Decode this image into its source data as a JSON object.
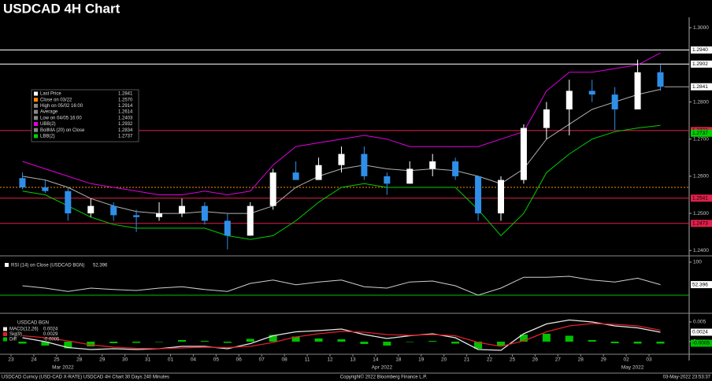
{
  "title": "USDCAD 4H Chart",
  "chart_data": [
    {
      "type": "candlestick",
      "categories": [
        "23",
        "24",
        "25",
        "28",
        "29",
        "30",
        "31",
        "01",
        "04",
        "05",
        "06",
        "07",
        "08",
        "11",
        "12",
        "13",
        "14",
        "18",
        "19",
        "20",
        "21",
        "22",
        "25",
        "26",
        "27",
        "28",
        "29",
        "02",
        "03"
      ],
      "month_labels": [
        "Mar 2022",
        "Apr 2022",
        "May 2022"
      ],
      "open": [
        1.2595,
        1.257,
        1.256,
        1.25,
        1.252,
        1.2495,
        1.249,
        1.25,
        1.252,
        1.248,
        1.244,
        1.252,
        1.261,
        1.259,
        1.263,
        1.266,
        1.26,
        1.258,
        1.262,
        1.264,
        1.26,
        1.25,
        1.259,
        1.273,
        1.278,
        1.283,
        1.282,
        1.278,
        1.288
      ],
      "high": [
        1.261,
        1.259,
        1.257,
        1.254,
        1.253,
        1.251,
        1.253,
        1.254,
        1.253,
        1.25,
        1.253,
        1.262,
        1.264,
        1.265,
        1.268,
        1.268,
        1.261,
        1.264,
        1.266,
        1.265,
        1.26,
        1.26,
        1.274,
        1.28,
        1.286,
        1.286,
        1.284,
        1.2914,
        1.29
      ],
      "low": [
        1.2565,
        1.2555,
        1.248,
        1.249,
        1.248,
        1.245,
        1.248,
        1.249,
        1.247,
        1.2403,
        1.244,
        1.251,
        1.259,
        1.259,
        1.261,
        1.259,
        1.255,
        1.258,
        1.26,
        1.259,
        1.248,
        1.248,
        1.258,
        1.27,
        1.271,
        1.28,
        1.2725,
        1.278,
        1.283
      ],
      "close": [
        1.257,
        1.256,
        1.25,
        1.252,
        1.2495,
        1.249,
        1.25,
        1.252,
        1.248,
        1.244,
        1.252,
        1.261,
        1.259,
        1.263,
        1.266,
        1.26,
        1.258,
        1.262,
        1.264,
        1.26,
        1.25,
        1.259,
        1.273,
        1.278,
        1.283,
        1.282,
        1.278,
        1.288,
        1.2841
      ],
      "up_color": "#ffffff",
      "down_color": "#2f8fe8",
      "bands": [
        {
          "name": "UBB(2)",
          "color": "#e000e0",
          "values": [
            1.264,
            1.262,
            1.26,
            1.258,
            1.257,
            1.256,
            1.255,
            1.255,
            1.256,
            1.255,
            1.256,
            1.263,
            1.268,
            1.269,
            1.27,
            1.271,
            1.27,
            1.268,
            1.268,
            1.268,
            1.268,
            1.27,
            1.272,
            1.283,
            1.288,
            1.288,
            1.289,
            1.29,
            1.2932
          ]
        },
        {
          "name": "BollMA (20) on Close",
          "color": "#b0b0b0",
          "values": [
            1.26,
            1.259,
            1.257,
            1.254,
            1.252,
            1.2505,
            1.25,
            1.25,
            1.2505,
            1.25,
            1.25,
            1.252,
            1.257,
            1.26,
            1.262,
            1.263,
            1.262,
            1.2615,
            1.262,
            1.2615,
            1.26,
            1.258,
            1.262,
            1.27,
            1.274,
            1.278,
            1.28,
            1.282,
            1.2834
          ]
        },
        {
          "name": "LBB(2)",
          "color": "#00d000",
          "values": [
            1.256,
            1.255,
            1.252,
            1.249,
            1.247,
            1.246,
            1.246,
            1.246,
            1.246,
            1.244,
            1.243,
            1.244,
            1.248,
            1.253,
            1.257,
            1.258,
            1.257,
            1.257,
            1.257,
            1.257,
            1.251,
            1.244,
            1.25,
            1.261,
            1.266,
            1.27,
            1.272,
            1.273,
            1.2737
          ]
        }
      ],
      "levels": [
        {
          "value": 1.294,
          "label": "1.2940",
          "color": "#ffffff"
        },
        {
          "value": 1.2902,
          "label": "1.2902",
          "color": "#ffffff"
        },
        {
          "value": 1.2723,
          "label": "1.2723",
          "color": "#e0204a"
        },
        {
          "value": 1.2541,
          "label": "1.2541",
          "color": "#e0204a"
        },
        {
          "value": 1.2473,
          "label": "1.2473",
          "color": "#e0204a"
        },
        {
          "value": 1.257,
          "color": "#ff8c00"
        }
      ],
      "stats": [
        {
          "name": "Last Price",
          "value": "1.2841",
          "color": "#ffffff"
        },
        {
          "name": "Close on 03/22",
          "value": "1.2570",
          "color": "#ff8c00"
        },
        {
          "name": "High on 05/02 16:00",
          "value": "1.2914",
          "color": "#888888"
        },
        {
          "name": "Average",
          "value": "1.2614",
          "color": "#888888"
        },
        {
          "name": "Low on 04/05 16:00",
          "value": "1.2403",
          "color": "#888888"
        },
        {
          "name": "UBB(2)",
          "value": "1.2932",
          "color": "#e000e0"
        },
        {
          "name": "BollMA (20)  on Close",
          "value": "1.2834",
          "color": "#888888"
        },
        {
          "name": "LBB(2)",
          "value": "1.2737",
          "color": "#00d000"
        }
      ],
      "ylim": [
        1.2392,
        1.3028
      ],
      "yticks": [
        {
          "value": 1.3,
          "label": "1.3000"
        },
        {
          "value": 1.28,
          "label": "1.2800"
        },
        {
          "value": 1.27,
          "label": "1.2700"
        },
        {
          "value": 1.26,
          "label": "1.2600"
        },
        {
          "value": 1.25,
          "label": "1.2500"
        },
        {
          "value": 1.24,
          "label": "1.2400"
        }
      ]
    },
    {
      "type": "line",
      "name": "RSI (14) on Close (USDCAD BGN)",
      "color": "#d0d0d0",
      "values": [
        50,
        45,
        38,
        45,
        42,
        40,
        45,
        48,
        42,
        38,
        55,
        62,
        52,
        58,
        62,
        48,
        45,
        58,
        60,
        50,
        30,
        45,
        68,
        68,
        70,
        62,
        58,
        66,
        52.396
      ],
      "reference": 30,
      "reference_color": "#00c000",
      "ylim": [
        0,
        100
      ],
      "yticks": [
        100
      ]
    },
    {
      "type": "macd",
      "name": "USDCAD BGN",
      "series": [
        {
          "name": "MACD(12,26)",
          "color": "#e8e8e8",
          "values": [
            0.001,
            0,
            -0.0015,
            -0.002,
            -0.0018,
            -0.002,
            -0.0018,
            -0.0012,
            -0.0012,
            -0.0018,
            -0.0005,
            0.0015,
            0.0025,
            0.0028,
            0.0032,
            0.0018,
            0.0008,
            0.0015,
            0.002,
            0.001,
            -0.002,
            -0.0022,
            0.002,
            0.0045,
            0.0055,
            0.005,
            0.004,
            0.0035,
            0.0024
          ]
        },
        {
          "name": "Sig(9)",
          "color": "#e0202a",
          "values": [
            0.0015,
            0.001,
            0.0002,
            -0.0008,
            -0.0014,
            -0.0017,
            -0.0018,
            -0.0016,
            -0.0014,
            -0.0015,
            -0.0012,
            -0.0002,
            0.0012,
            0.002,
            0.0026,
            0.0024,
            0.0018,
            0.0016,
            0.0018,
            0.0015,
            -0.0002,
            -0.0012,
            0.0002,
            0.0025,
            0.004,
            0.0046,
            0.0044,
            0.004,
            0.0029
          ]
        },
        {
          "name": "Diff",
          "color": "#00c000",
          "values": [
            -0.0005,
            -0.001,
            -0.0017,
            -0.0012,
            -0.0004,
            -0.0003,
            0,
            0.0004,
            0.0002,
            -0.0003,
            0.0007,
            0.0017,
            0.0013,
            0.0008,
            0.0006,
            -0.0006,
            -0.001,
            -0.0001,
            0.0002,
            -0.0005,
            -0.0018,
            -0.001,
            0.0018,
            0.002,
            0.0015,
            0.0004,
            -0.0004,
            -0.0005,
            -0.0005
          ]
        }
      ],
      "ylim": [
        -0.0024,
        0.0062
      ],
      "yticks": [
        0.005,
        0
      ]
    }
  ],
  "footer": {
    "left": "USDCAD Curncy (USD-CAD X-RATE) USDCAD 4H Chart 30 Days 240 Minutes",
    "center": "Copyright© 2022 Bloomberg Finance L.P.",
    "right": "03-May-2022 23:53:37"
  }
}
